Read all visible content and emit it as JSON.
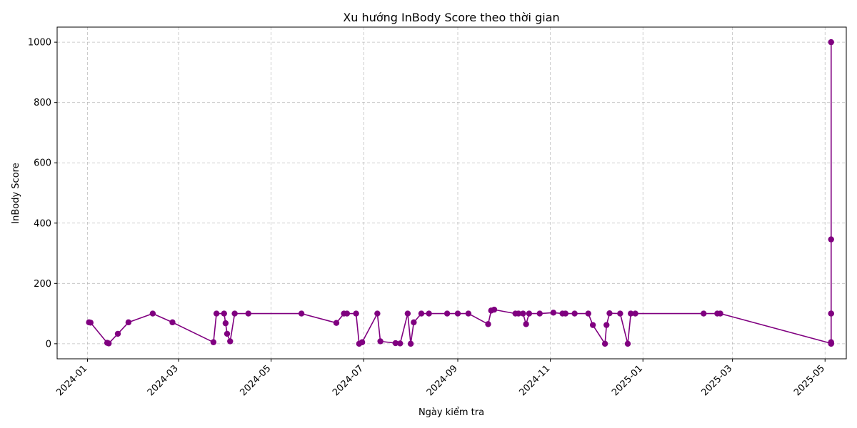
{
  "chart_data": {
    "type": "line",
    "title": "Xu hướng InBody Score theo thời gian",
    "xlabel": "Ngày kiểm tra",
    "ylabel": "InBody Score",
    "xlim": [
      "2023-12-12",
      "2025-05-15"
    ],
    "ylim": [
      -50,
      1050
    ],
    "yticks": [
      0,
      200,
      400,
      600,
      800,
      1000
    ],
    "xticks": [
      "2024-01",
      "2024-03",
      "2024-05",
      "2024-07",
      "2024-09",
      "2024-11",
      "2025-01",
      "2025-03",
      "2025-05"
    ],
    "xtick_dates": [
      "2024-01-01",
      "2024-03-01",
      "2024-05-01",
      "2024-07-01",
      "2024-09-01",
      "2024-11-01",
      "2025-01-01",
      "2025-03-01",
      "2025-05-01"
    ],
    "grid": true,
    "line_color": "#800080",
    "x": [
      "2024-01-02",
      "2024-01-03",
      "2024-01-14",
      "2024-01-15",
      "2024-01-21",
      "2024-01-28",
      "2024-02-13",
      "2024-02-26",
      "2024-03-24",
      "2024-03-26",
      "2024-03-31",
      "2024-04-01",
      "2024-04-02",
      "2024-04-04",
      "2024-04-07",
      "2024-04-16",
      "2024-05-21",
      "2024-06-13",
      "2024-06-18",
      "2024-06-20",
      "2024-06-26",
      "2024-06-28",
      "2024-06-30",
      "2024-07-10",
      "2024-07-12",
      "2024-07-22",
      "2024-07-25",
      "2024-07-30",
      "2024-08-01",
      "2024-08-03",
      "2024-08-08",
      "2024-08-13",
      "2024-08-25",
      "2024-09-01",
      "2024-09-08",
      "2024-09-21",
      "2024-09-23",
      "2024-09-25",
      "2024-10-09",
      "2024-10-11",
      "2024-10-14",
      "2024-10-16",
      "2024-10-18",
      "2024-10-25",
      "2024-11-03",
      "2024-11-09",
      "2024-11-11",
      "2024-11-17",
      "2024-11-26",
      "2024-11-29",
      "2024-12-07",
      "2024-12-08",
      "2024-12-10",
      "2024-12-17",
      "2024-12-22",
      "2024-12-24",
      "2024-12-27",
      "2025-02-10",
      "2025-02-19",
      "2025-02-21",
      "2025-05-05",
      "2025-05-05",
      "2025-05-05",
      "2025-05-05",
      "2025-05-05",
      "2025-05-05",
      "2025-05-05"
    ],
    "y": [
      71,
      70,
      3,
      1,
      33,
      71,
      100,
      71,
      5,
      100,
      100,
      68,
      33,
      8,
      100,
      100,
      100,
      69,
      100,
      100,
      100,
      0,
      5,
      100,
      8,
      2,
      1,
      100,
      0,
      71,
      100,
      100,
      100,
      100,
      100,
      65,
      110,
      113,
      100,
      100,
      100,
      65,
      100,
      100,
      103,
      100,
      100,
      100,
      100,
      62,
      0,
      62,
      101,
      100,
      0,
      100,
      100,
      100,
      100,
      100,
      1,
      0,
      5,
      1000,
      346,
      100,
      100
    ]
  }
}
